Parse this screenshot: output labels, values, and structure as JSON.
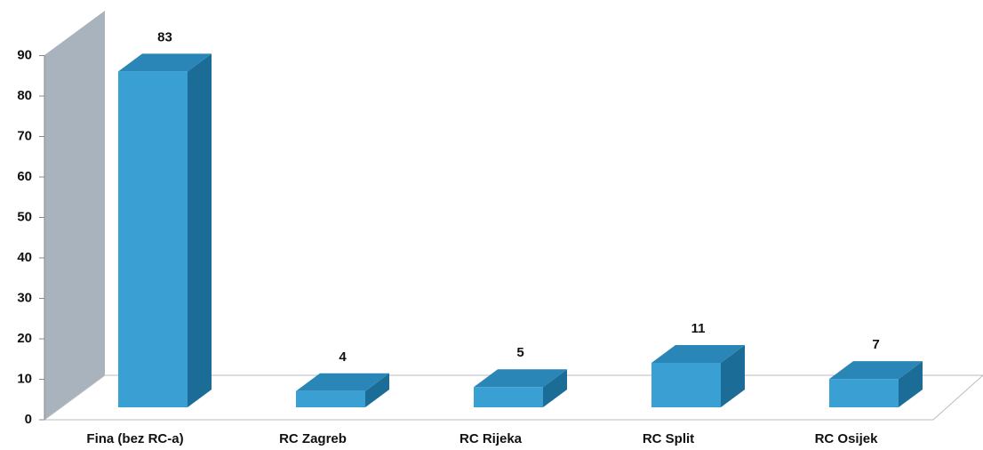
{
  "chart_data": {
    "type": "bar3d",
    "categories": [
      "Fina (bez RC-a)",
      "RC Zagreb",
      "RC Rijeka",
      "RC Split",
      "RC Osijek"
    ],
    "values": [
      83,
      4,
      5,
      11,
      7
    ],
    "color": "#3a9fd2",
    "ylim": [
      0,
      90
    ],
    "yticks": [
      0,
      10,
      20,
      30,
      40,
      50,
      60,
      70,
      80,
      90
    ]
  }
}
